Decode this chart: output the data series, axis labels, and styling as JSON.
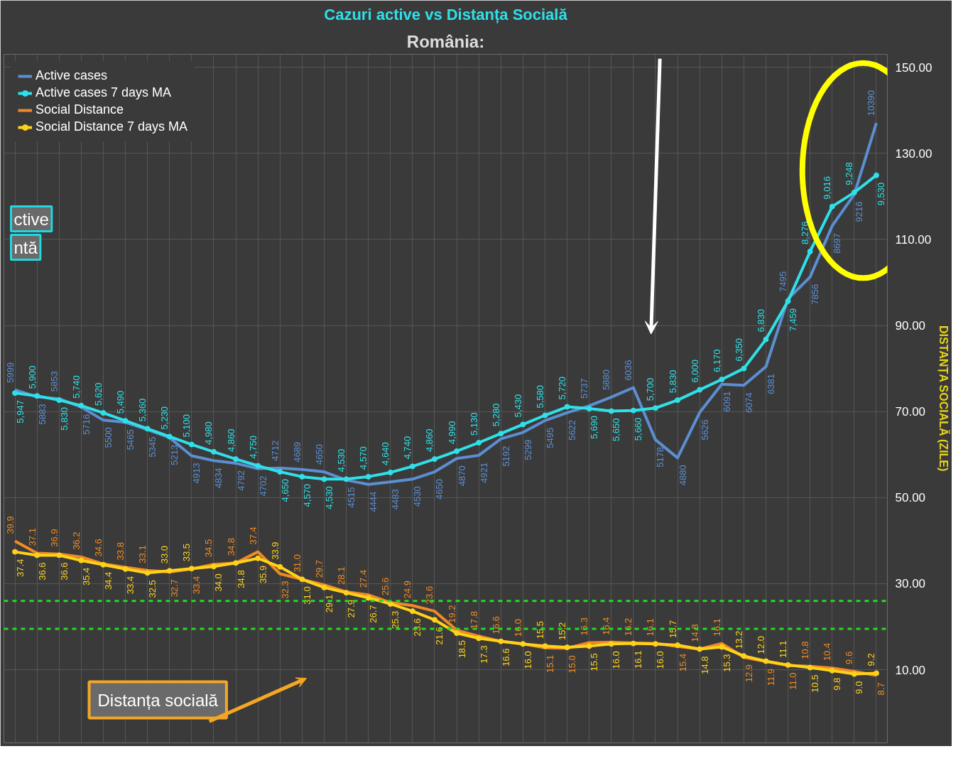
{
  "chart_data": {
    "type": "line",
    "title": "România:",
    "subtitle": "Cazuri active vs Distanța Socială",
    "ylabel": "DISTANȚA SOCIALĂ (ZILE)",
    "categories": [
      null,
      null,
      null,
      null,
      null,
      null,
      null,
      null,
      null,
      null,
      null,
      null,
      null,
      null,
      null,
      null,
      null,
      null,
      null,
      null,
      null,
      null,
      null,
      null,
      null,
      null,
      null,
      null,
      null,
      null,
      null,
      null,
      null,
      null,
      null,
      null,
      null,
      null,
      null,
      null
    ],
    "ylim": [
      -7,
      153
    ],
    "yticks": [
      {
        "value": 10,
        "label": "10.00"
      },
      {
        "value": 30,
        "label": "30.00"
      },
      {
        "value": 50,
        "label": "50.00"
      },
      {
        "value": 70,
        "label": "70.00"
      },
      {
        "value": 90,
        "label": "90.00"
      },
      {
        "value": 110,
        "label": "110.00"
      },
      {
        "value": 130,
        "label": "130.00"
      },
      {
        "value": 150,
        "label": "150.00"
      }
    ],
    "y2lim": [
      190,
      11520
    ],
    "tick_labels": "y",
    "grid": true,
    "legend": "top left",
    "series": [
      {
        "name": "Active cases",
        "color": "#5b8fd1",
        "axis": "y2",
        "marker": "none",
        "values": [
          5999,
          5883,
          5853,
          5716,
          5500,
          5465,
          5345,
          5213,
          4913,
          4834,
          4792,
          4702,
          4712,
          4689,
          4650,
          4515,
          4444,
          4483,
          4530,
          4650,
          4870,
          4921,
          5192,
          5299,
          5495,
          5622,
          5737,
          5880,
          6036,
          5178,
          4880,
          5626,
          6091,
          6074,
          6381,
          7495,
          7856,
          8697,
          9216,
          10390
        ],
        "value_labels": [
          "5999",
          "5883",
          "5853",
          "5716",
          "5500",
          "5465",
          "5345",
          "5213",
          "4913",
          "4834",
          "4792",
          "4702",
          "4712",
          "4689",
          "4650",
          "4515",
          "4444",
          "4483",
          "4530",
          "4650",
          "4870",
          "4921",
          "5192",
          "5299",
          "5495",
          "5622",
          "5737",
          "5880",
          "6036",
          "5178",
          "4880",
          "5626",
          "6091",
          "6074",
          "6381",
          "7495",
          "7856",
          "8697",
          "9216",
          "10390"
        ]
      },
      {
        "name": "Active cases 7 days MA",
        "color": "#2fe0e8",
        "axis": "y2",
        "marker": "circle",
        "values": [
          5947,
          5900,
          5830,
          5740,
          5620,
          5490,
          5360,
          5230,
          5100,
          4980,
          4860,
          4750,
          4650,
          4570,
          4530,
          4530,
          4570,
          4640,
          4740,
          4860,
          4990,
          5130,
          5280,
          5430,
          5580,
          5720,
          5690,
          5650,
          5660,
          5700,
          5830,
          6000,
          6170,
          6350,
          6830,
          7459,
          8276,
          9016,
          9248,
          9530
        ],
        "value_labels": [
          "5,947",
          "5,900",
          "5,830",
          "5,740",
          "5,620",
          "5,490",
          "5,360",
          "5,230",
          "5,100",
          "4,980",
          "4,860",
          "4,750",
          "4,650",
          "4,570",
          "4,530",
          "4,530",
          "4,570",
          "4,640",
          "4,740",
          "4,860",
          "4,990",
          "5,130",
          "5,280",
          "5,430",
          "5,580",
          "5,720",
          "5,690",
          "5,650",
          "5,660",
          "5,700",
          "5,830",
          "6,000",
          "6,170",
          "6,350",
          "6,830",
          "7,459",
          "8,276",
          "9,016",
          "9,248",
          "9,530"
        ]
      },
      {
        "name": "Social Distance",
        "color": "#f08a24",
        "marker": "none",
        "values": [
          39.9,
          37.1,
          36.9,
          36.2,
          34.6,
          33.8,
          33.1,
          32.7,
          33.4,
          34.5,
          34.8,
          37.4,
          32.3,
          31.0,
          29.7,
          28.1,
          27.4,
          25.6,
          24.9,
          23.6,
          19.2,
          17.8,
          16.6,
          16.0,
          15.1,
          15.0,
          16.3,
          16.4,
          16.2,
          16.1,
          15.4,
          14.8,
          16.1,
          12.9,
          11.9,
          11.0,
          10.8,
          10.4,
          9.6,
          8.7
        ],
        "value_labels": [
          "39.9",
          "37.1",
          "36.9",
          "36.2",
          "34.6",
          "33.8",
          "33.1",
          "32.7",
          "33.4",
          "34.5",
          "34.8",
          "37.4",
          "32.3",
          "31.0",
          "29.7",
          "28.1",
          "27.4",
          "25.6",
          "24.9",
          "23.6",
          "19.2",
          "17.8",
          "16.6",
          "16.0",
          "15.1",
          "15.0",
          "16.3",
          "16.4",
          "16.2",
          "16.1",
          "15.4",
          "14.8",
          "16.1",
          "12.9",
          "11.9",
          "11.0",
          "10.8",
          "10.4",
          "9.6",
          "8.7"
        ]
      },
      {
        "name": "Social Distance 7 days MA",
        "color": "#ffd21a",
        "marker": "circle",
        "values": [
          37.4,
          36.6,
          36.6,
          35.4,
          34.4,
          33.4,
          32.5,
          33.0,
          33.5,
          34.0,
          34.8,
          35.9,
          33.9,
          31.0,
          29.1,
          27.9,
          26.7,
          25.3,
          23.6,
          21.6,
          18.5,
          17.3,
          16.6,
          16.0,
          15.5,
          15.2,
          15.5,
          16.0,
          16.1,
          16.0,
          15.7,
          14.8,
          15.3,
          13.2,
          12.0,
          11.1,
          10.5,
          9.8,
          9.0,
          9.2
        ],
        "value_labels": [
          "37.4",
          "36.6",
          "36.6",
          "35.4",
          "34.4",
          "33.4",
          "32.5",
          "33.0",
          "33.5",
          "34.0",
          "34.8",
          "35.9",
          "33.9",
          "31.0",
          "29.1",
          "27.9",
          "26.7",
          "25.3",
          "23.6",
          "21.6",
          "18.5",
          "17.3",
          "16.6",
          "16.0",
          "15.5",
          "15.2",
          "15.5",
          "16.0",
          "16.1",
          "16.0",
          "15.7",
          "14.8",
          "15.3",
          "13.2",
          "12.0",
          "11.1",
          "10.5",
          "9.8",
          "9.0",
          "9.2"
        ]
      }
    ],
    "ref_lines": [
      {
        "axis": "y",
        "value": 26,
        "label": null,
        "color": "#22dd22",
        "line_style": "dashed"
      },
      {
        "axis": "y",
        "value": 19.5,
        "label": null,
        "color": "#22dd22",
        "line_style": "dashed"
      }
    ],
    "annotations": [
      "Distanța socială",
      "ctive",
      "ntă"
    ]
  }
}
